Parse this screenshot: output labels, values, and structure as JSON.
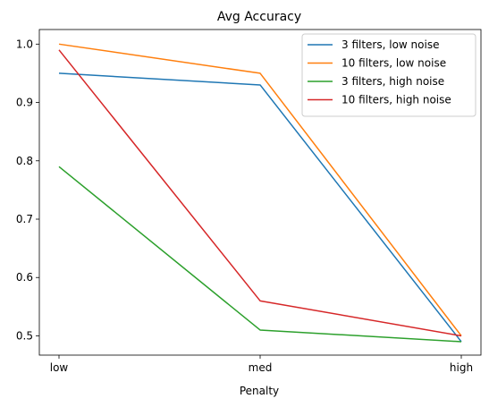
{
  "chart_data": {
    "type": "line",
    "title": "Avg Accuracy",
    "xlabel": "Penalty",
    "ylabel": "",
    "categories": [
      "low",
      "med",
      "high"
    ],
    "ylim": [
      0.467,
      1.025
    ],
    "yticks": [
      0.5,
      0.6,
      0.7,
      0.8,
      0.9,
      1.0
    ],
    "ytick_labels": [
      "0.5",
      "0.6",
      "0.7",
      "0.8",
      "0.9",
      "1.0"
    ],
    "grid": false,
    "legend_position": "top-right",
    "series": [
      {
        "name": "3 filters, low noise",
        "color": "#1f77b4",
        "values": [
          0.95,
          0.93,
          0.49
        ]
      },
      {
        "name": "10 filters, low noise",
        "color": "#ff7f0e",
        "values": [
          1.0,
          0.95,
          0.5
        ]
      },
      {
        "name": "3 filters, high noise",
        "color": "#2ca02c",
        "values": [
          0.79,
          0.51,
          0.49
        ]
      },
      {
        "name": "10 filters, high noise",
        "color": "#d62728",
        "values": [
          0.99,
          0.56,
          0.5
        ]
      }
    ]
  }
}
